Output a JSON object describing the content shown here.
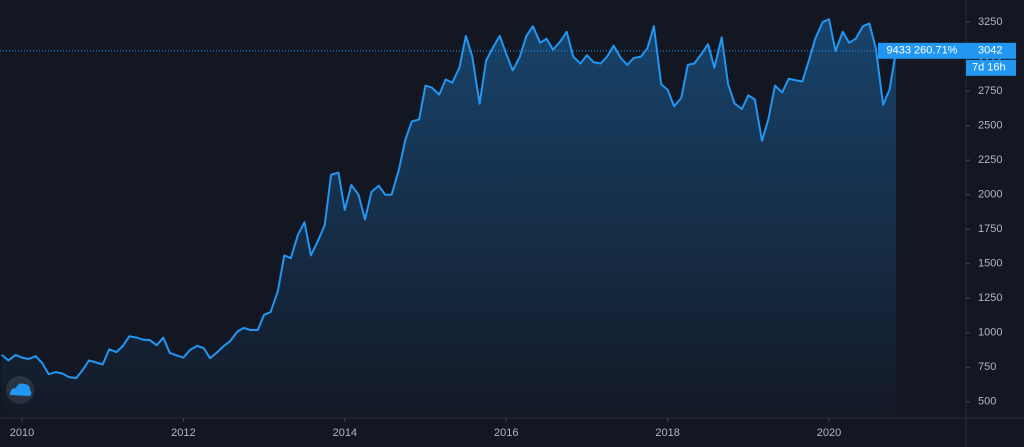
{
  "chart_data": {
    "type": "area",
    "x": [
      2009.75,
      2009.83,
      2009.92,
      2010.0,
      2010.08,
      2010.17,
      2010.25,
      2010.33,
      2010.42,
      2010.5,
      2010.58,
      2010.67,
      2010.75,
      2010.83,
      2010.92,
      2011.0,
      2011.08,
      2011.17,
      2011.25,
      2011.33,
      2011.42,
      2011.5,
      2011.58,
      2011.67,
      2011.75,
      2011.83,
      2011.92,
      2012.0,
      2012.08,
      2012.17,
      2012.25,
      2012.33,
      2012.42,
      2012.5,
      2012.58,
      2012.67,
      2012.75,
      2012.83,
      2012.92,
      2013.0,
      2013.08,
      2013.17,
      2013.25,
      2013.33,
      2013.42,
      2013.5,
      2013.58,
      2013.67,
      2013.75,
      2013.83,
      2013.92,
      2014.0,
      2014.08,
      2014.17,
      2014.25,
      2014.33,
      2014.42,
      2014.5,
      2014.58,
      2014.67,
      2014.75,
      2014.83,
      2014.92,
      2015.0,
      2015.08,
      2015.17,
      2015.25,
      2015.33,
      2015.42,
      2015.5,
      2015.58,
      2015.67,
      2015.75,
      2015.83,
      2015.92,
      2016.0,
      2016.08,
      2016.17,
      2016.25,
      2016.33,
      2016.42,
      2016.5,
      2016.58,
      2016.67,
      2016.75,
      2016.83,
      2016.92,
      2017.0,
      2017.08,
      2017.17,
      2017.25,
      2017.33,
      2017.42,
      2017.5,
      2017.58,
      2017.67,
      2017.75,
      2017.83,
      2017.92,
      2018.0,
      2018.08,
      2018.17,
      2018.25,
      2018.33,
      2018.42,
      2018.5,
      2018.58,
      2018.67,
      2018.75,
      2018.83,
      2018.92,
      2019.0,
      2019.08,
      2019.17,
      2019.25,
      2019.33,
      2019.42,
      2019.5,
      2019.58,
      2019.67,
      2019.75,
      2019.83,
      2019.92,
      2020.0,
      2020.08,
      2020.17,
      2020.25,
      2020.33,
      2020.42,
      2020.5,
      2020.58,
      2020.67,
      2020.75,
      2020.83
    ],
    "values": [
      840,
      800,
      840,
      820,
      810,
      830,
      780,
      700,
      715,
      705,
      680,
      672,
      730,
      800,
      785,
      770,
      880,
      860,
      905,
      975,
      965,
      950,
      948,
      910,
      965,
      855,
      835,
      820,
      875,
      905,
      890,
      815,
      860,
      905,
      940,
      1010,
      1035,
      1020,
      1020,
      1130,
      1150,
      1300,
      1560,
      1540,
      1710,
      1800,
      1560,
      1670,
      1780,
      2145,
      2160,
      1890,
      2070,
      2000,
      1820,
      2020,
      2065,
      2000,
      2000,
      2180,
      2400,
      2530,
      2545,
      2790,
      2775,
      2725,
      2835,
      2810,
      2920,
      3150,
      3000,
      2660,
      2970,
      3060,
      3150,
      3020,
      2900,
      3000,
      3150,
      3220,
      3100,
      3130,
      3050,
      3110,
      3180,
      3000,
      2950,
      3010,
      2960,
      2950,
      3000,
      3080,
      2990,
      2940,
      2990,
      3000,
      3060,
      3220,
      2800,
      2760,
      2640,
      2700,
      2940,
      2950,
      3020,
      3090,
      2920,
      3140,
      2800,
      2660,
      2620,
      2720,
      2690,
      2390,
      2550,
      2790,
      2740,
      2840,
      2830,
      2820,
      2970,
      3130,
      3250,
      3270,
      3040,
      3180,
      3100,
      3130,
      3220,
      3240,
      3060,
      2650,
      2760,
      3042
    ],
    "color": "#2196f3",
    "xlim": [
      2009.727,
      2021.685
    ],
    "xticks": [
      2010,
      2012,
      2014,
      2016,
      2018,
      2020
    ],
    "ylim": [
      390,
      3410
    ],
    "yticks": [
      500,
      750,
      1000,
      1250,
      1500,
      1750,
      2000,
      2250,
      2500,
      2750,
      3000,
      3250
    ],
    "last_change": "9433 260.71%",
    "countdown": "7d 16h"
  }
}
